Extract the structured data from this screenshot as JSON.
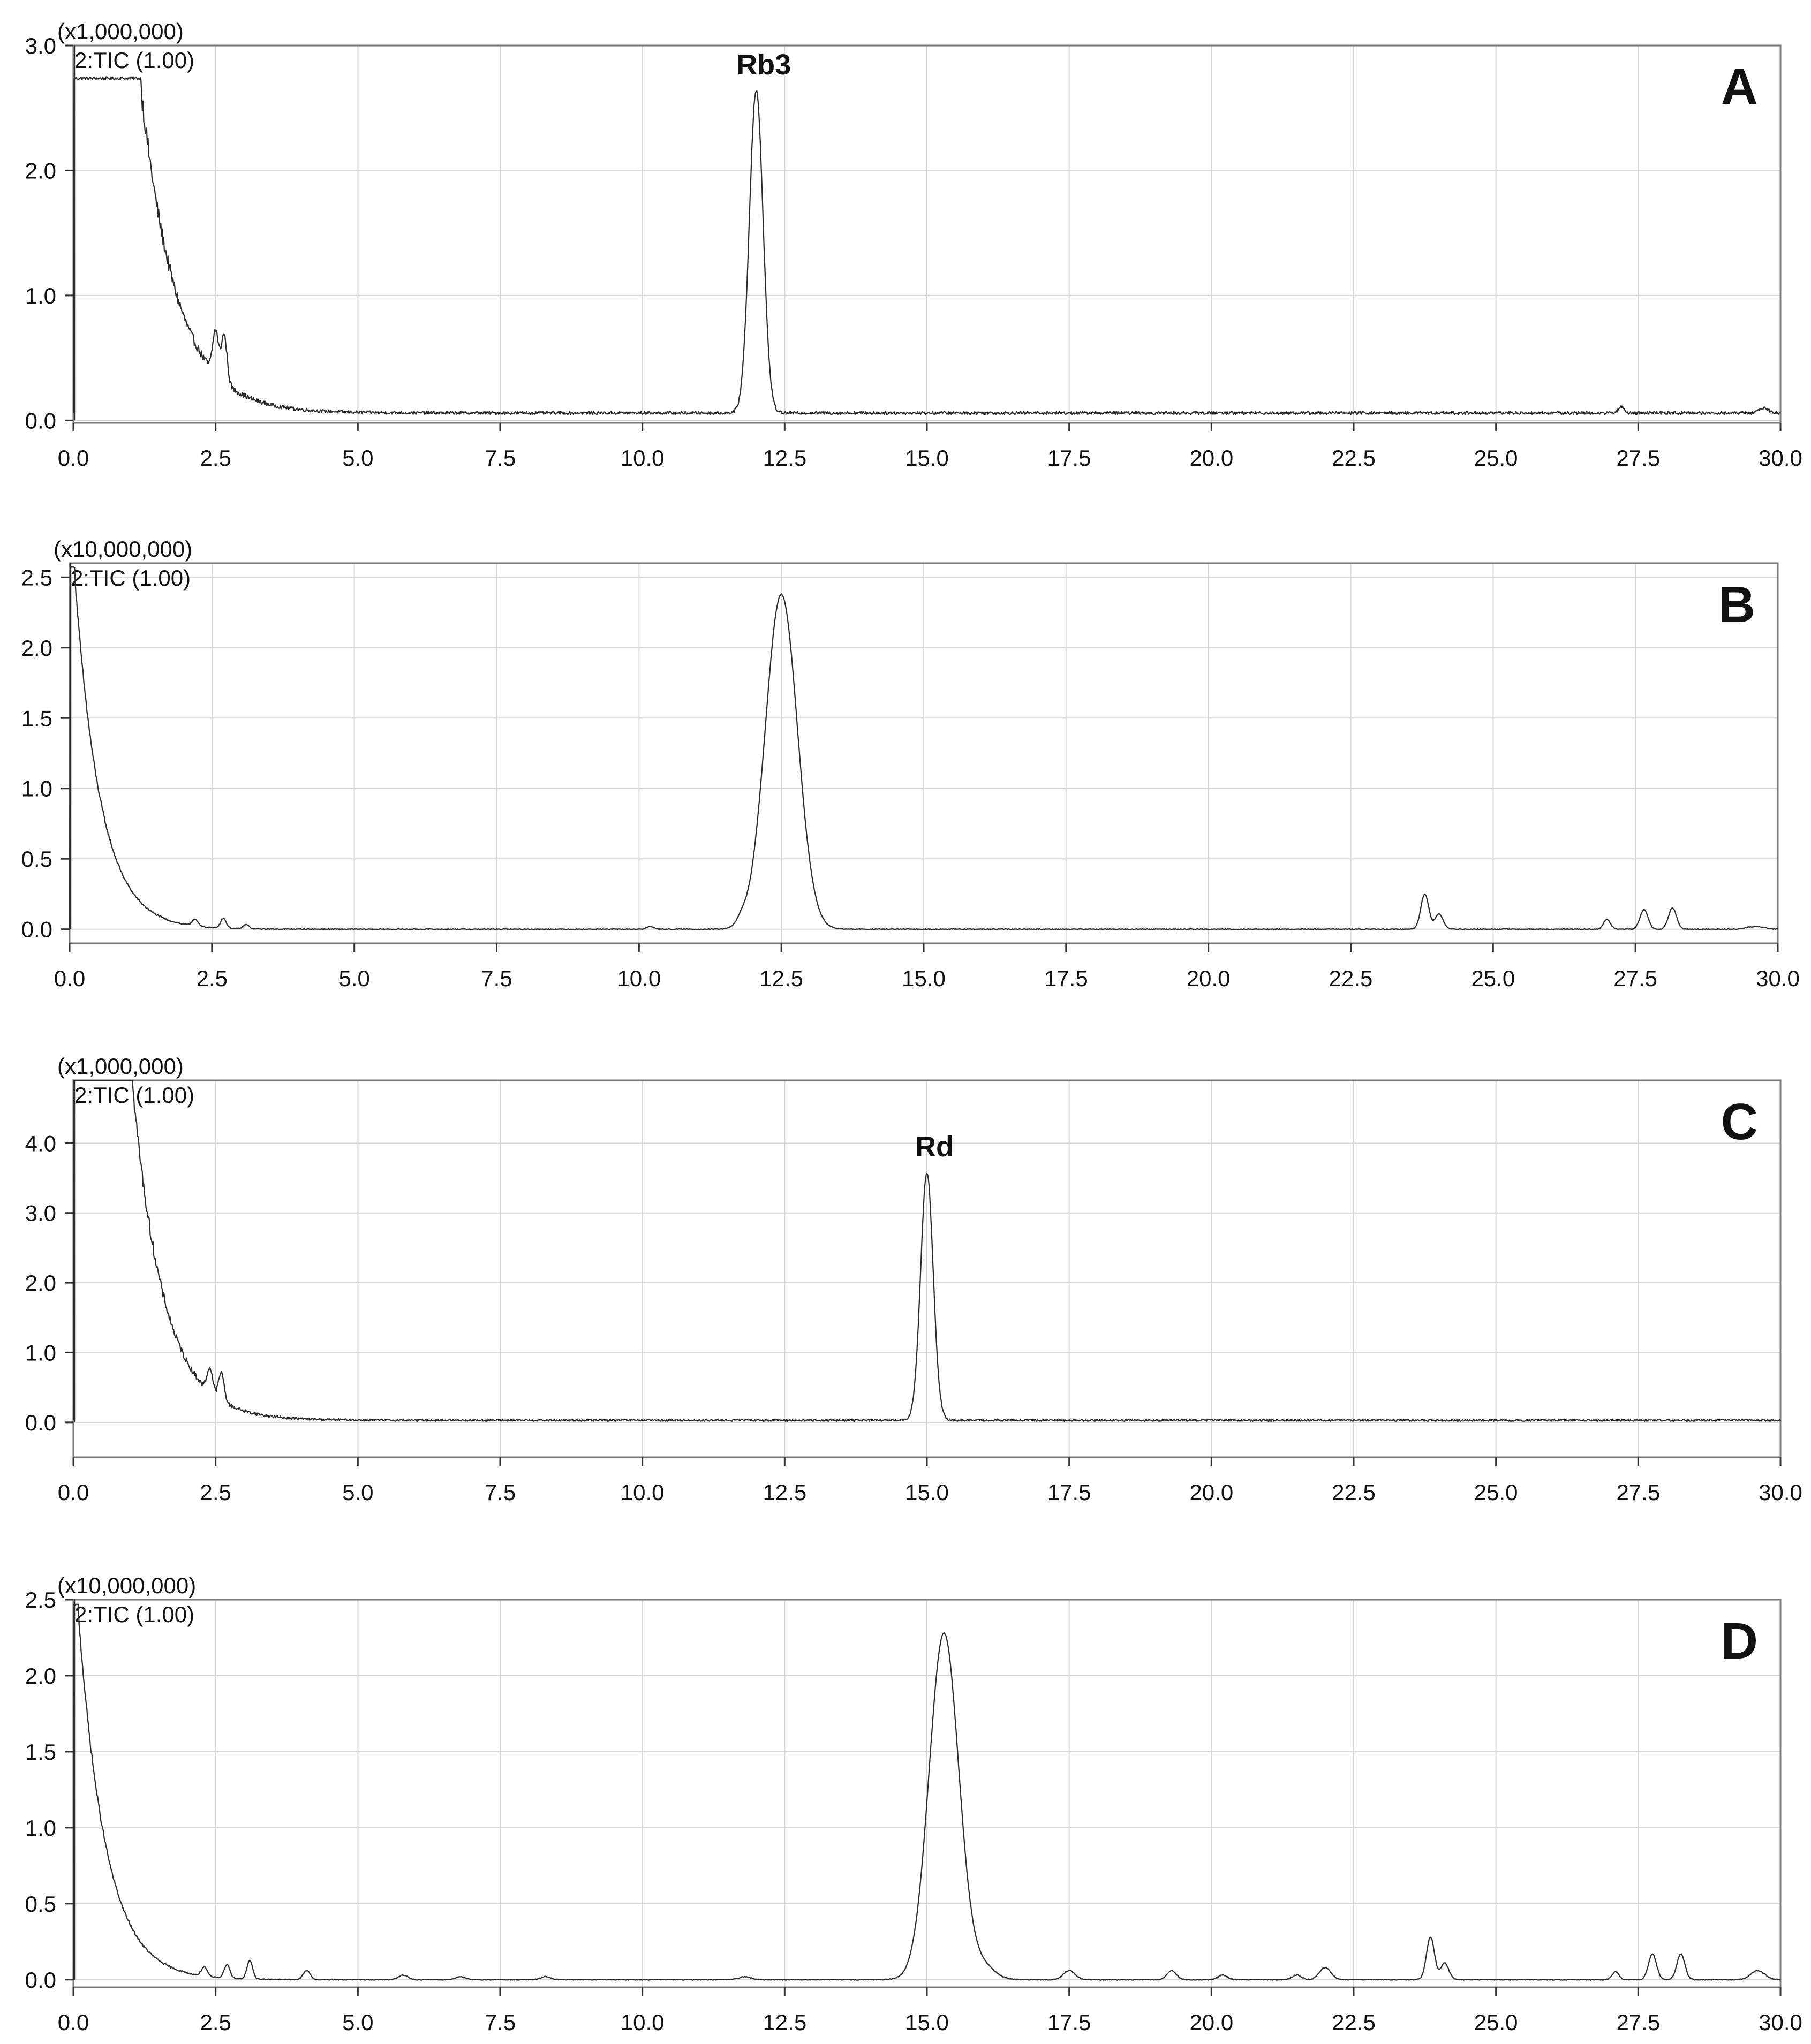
{
  "chart_data": [
    {
      "type": "line",
      "panel": "A",
      "scale_label": "(x1,000,000)",
      "trace_label": "2:TIC (1.00)",
      "xlim": [
        0,
        30
      ],
      "ylim": [
        -0.02,
        3.0
      ],
      "x_ticks": [
        "0.0",
        "2.5",
        "5.0",
        "7.5",
        "10.0",
        "12.5",
        "15.0",
        "17.5",
        "20.0",
        "22.5",
        "25.0",
        "27.5",
        "30.0"
      ],
      "y_ticks": [
        0.0,
        1.0,
        2.0,
        3.0
      ],
      "y_tick_labels": [
        "0.0",
        "1.0",
        "2.0",
        "3.0"
      ],
      "baseline": 0.06,
      "noise": 0.012,
      "solvent_front": {
        "start": 1.2,
        "amplitude": 2.55,
        "decay": 0.62
      },
      "peaks": [
        {
          "rt": 2.5,
          "height": 0.35,
          "width": 0.05
        },
        {
          "rt": 2.65,
          "height": 0.38,
          "width": 0.05
        },
        {
          "rt": 12.0,
          "height": 2.58,
          "width": 0.12,
          "label": "Rb3"
        },
        {
          "rt": 27.2,
          "height": 0.05,
          "width": 0.05
        },
        {
          "rt": 29.7,
          "height": 0.04,
          "width": 0.08
        }
      ]
    },
    {
      "type": "line",
      "panel": "B",
      "scale_label": "(x10,000,000)",
      "trace_label": "2:TIC (1.00)",
      "xlim": [
        0,
        30
      ],
      "ylim": [
        -0.1,
        2.6
      ],
      "x_ticks": [
        "0.0",
        "2.5",
        "5.0",
        "7.5",
        "10.0",
        "12.5",
        "15.0",
        "17.5",
        "20.0",
        "22.5",
        "25.0",
        "27.5",
        "30.0"
      ],
      "y_ticks": [
        0.0,
        0.5,
        1.0,
        1.5,
        2.0,
        2.5
      ],
      "y_tick_labels": [
        "0.0",
        "0.5",
        "1.0",
        "1.5",
        "2.0",
        "2.5"
      ],
      "baseline": 0.0,
      "noise": 0.003,
      "solvent_front": {
        "start": 0.1,
        "amplitude": 2.45,
        "decay": 0.45
      },
      "peaks": [
        {
          "rt": 2.2,
          "height": 0.05,
          "width": 0.05
        },
        {
          "rt": 2.7,
          "height": 0.07,
          "width": 0.05
        },
        {
          "rt": 3.1,
          "height": 0.03,
          "width": 0.05
        },
        {
          "rt": 10.2,
          "height": 0.02,
          "width": 0.06
        },
        {
          "rt": 11.8,
          "height": 0.04,
          "width": 0.08
        },
        {
          "rt": 12.5,
          "height": 2.38,
          "width": 0.28
        },
        {
          "rt": 23.8,
          "height": 0.25,
          "width": 0.07
        },
        {
          "rt": 24.05,
          "height": 0.11,
          "width": 0.07
        },
        {
          "rt": 27.0,
          "height": 0.07,
          "width": 0.06
        },
        {
          "rt": 27.65,
          "height": 0.14,
          "width": 0.07
        },
        {
          "rt": 28.15,
          "height": 0.15,
          "width": 0.07
        },
        {
          "rt": 29.6,
          "height": 0.02,
          "width": 0.15
        }
      ]
    },
    {
      "type": "line",
      "panel": "C",
      "scale_label": "(x1,000,000)",
      "trace_label": "2:TIC (1.00)",
      "xlim": [
        0,
        30
      ],
      "ylim": [
        -0.5,
        4.9
      ],
      "x_ticks": [
        "0.0",
        "2.5",
        "5.0",
        "7.5",
        "10.0",
        "12.5",
        "15.0",
        "17.5",
        "20.0",
        "22.5",
        "25.0",
        "27.5",
        "30.0"
      ],
      "y_ticks": [
        0.0,
        1.0,
        2.0,
        3.0,
        4.0
      ],
      "y_tick_labels": [
        "0.0",
        "1.0",
        "2.0",
        "3.0",
        "4.0"
      ],
      "baseline": 0.03,
      "noise": 0.015,
      "solvent_front": {
        "start": 1.05,
        "amplitude": 4.7,
        "decay": 0.55
      },
      "peaks": [
        {
          "rt": 2.4,
          "height": 0.35,
          "width": 0.05
        },
        {
          "rt": 2.6,
          "height": 0.4,
          "width": 0.05
        },
        {
          "rt": 15.0,
          "height": 3.55,
          "width": 0.11,
          "label": "Rd"
        }
      ]
    },
    {
      "type": "line",
      "panel": "D",
      "scale_label": "(x10,000,000)",
      "trace_label": "2:TIC (1.00)",
      "xlim": [
        0,
        30
      ],
      "ylim": [
        -0.05,
        2.5
      ],
      "x_ticks": [
        "0.0",
        "2.5",
        "5.0",
        "7.5",
        "10.0",
        "12.5",
        "15.0",
        "17.5",
        "20.0",
        "22.5",
        "25.0",
        "27.5",
        "30.0"
      ],
      "y_ticks": [
        0.0,
        0.5,
        1.0,
        1.5,
        2.0,
        2.5
      ],
      "y_tick_labels": [
        "0.0",
        "0.5",
        "1.0",
        "1.5",
        "2.0",
        "2.5"
      ],
      "baseline": 0.0,
      "noise": 0.003,
      "solvent_front": {
        "start": 0.1,
        "amplitude": 2.35,
        "decay": 0.48
      },
      "peaks": [
        {
          "rt": 2.3,
          "height": 0.06,
          "width": 0.05
        },
        {
          "rt": 2.7,
          "height": 0.09,
          "width": 0.05
        },
        {
          "rt": 3.1,
          "height": 0.12,
          "width": 0.05
        },
        {
          "rt": 4.1,
          "height": 0.06,
          "width": 0.06
        },
        {
          "rt": 5.8,
          "height": 0.03,
          "width": 0.08
        },
        {
          "rt": 6.8,
          "height": 0.02,
          "width": 0.08
        },
        {
          "rt": 8.3,
          "height": 0.02,
          "width": 0.08
        },
        {
          "rt": 11.8,
          "height": 0.02,
          "width": 0.1
        },
        {
          "rt": 15.3,
          "height": 2.28,
          "width": 0.26
        },
        {
          "rt": 16.0,
          "height": 0.08,
          "width": 0.2
        },
        {
          "rt": 17.5,
          "height": 0.06,
          "width": 0.1
        },
        {
          "rt": 19.3,
          "height": 0.06,
          "width": 0.08
        },
        {
          "rt": 20.2,
          "height": 0.03,
          "width": 0.08
        },
        {
          "rt": 21.5,
          "height": 0.03,
          "width": 0.08
        },
        {
          "rt": 22.0,
          "height": 0.08,
          "width": 0.1
        },
        {
          "rt": 23.85,
          "height": 0.28,
          "width": 0.07
        },
        {
          "rt": 24.1,
          "height": 0.11,
          "width": 0.07
        },
        {
          "rt": 27.1,
          "height": 0.05,
          "width": 0.06
        },
        {
          "rt": 27.75,
          "height": 0.17,
          "width": 0.07
        },
        {
          "rt": 28.25,
          "height": 0.17,
          "width": 0.07
        },
        {
          "rt": 29.6,
          "height": 0.06,
          "width": 0.12
        }
      ]
    }
  ]
}
